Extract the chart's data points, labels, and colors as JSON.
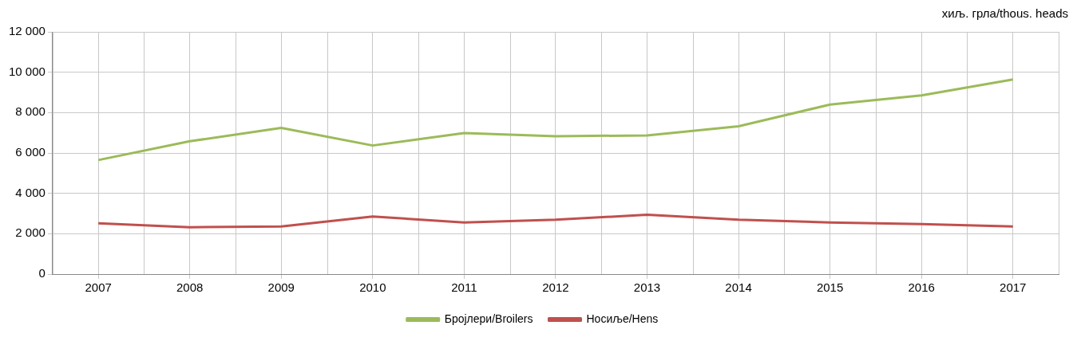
{
  "chart_data": {
    "type": "line",
    "ylabel": "хиљ. грла/thous. heads",
    "categories": [
      "2007",
      "2008",
      "2009",
      "2010",
      "2011",
      "2012",
      "2013",
      "2014",
      "2015",
      "2016",
      "2017"
    ],
    "series": [
      {
        "name": "Бројлери/Broilers",
        "color": "#9bbb59",
        "values": [
          5650,
          6580,
          7240,
          6370,
          6990,
          6830,
          6870,
          7320,
          8400,
          8850,
          9640
        ]
      },
      {
        "name": "Носиље/Hens",
        "color": "#c0504d",
        "values": [
          2520,
          2320,
          2360,
          2850,
          2560,
          2690,
          2940,
          2690,
          2560,
          2480,
          2360
        ]
      }
    ],
    "ylim": [
      0,
      12000
    ],
    "yticks": [
      0,
      {
        "value": 2000,
        "label": "2 000"
      },
      {
        "value": 4000,
        "label": "4 000"
      },
      {
        "value": 6000,
        "label": "6 000"
      },
      {
        "value": 8000,
        "label": "8 000"
      },
      {
        "value": 10000,
        "label": "10 000"
      },
      {
        "value": 12000,
        "label": "12 000"
      }
    ],
    "grid": true,
    "legend": "bottom",
    "marker": "none",
    "line_style": "solid"
  }
}
